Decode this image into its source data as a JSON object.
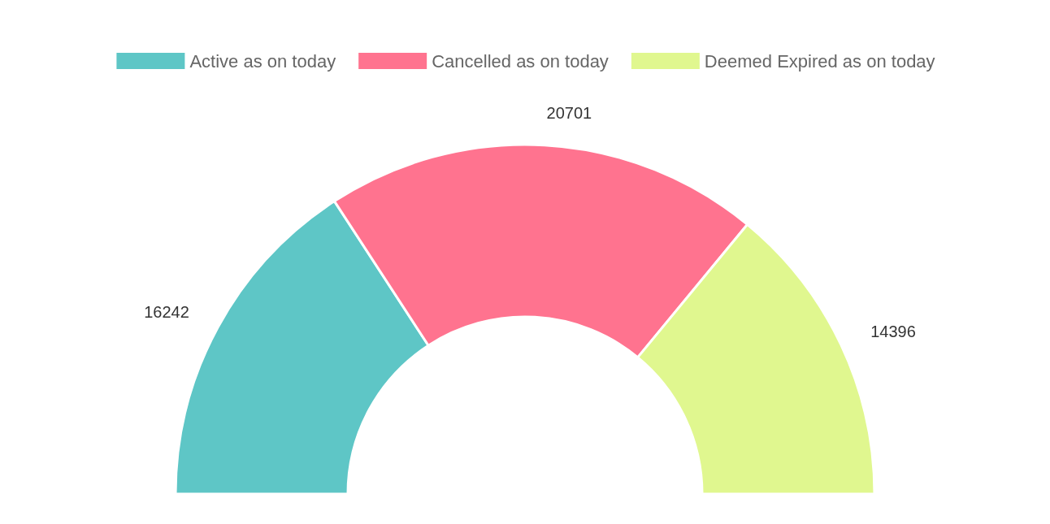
{
  "chart_data": {
    "type": "donut",
    "categories": [
      "Active as on today",
      "Cancelled as on today",
      "Deemed Expired as on today"
    ],
    "values": [
      16242,
      20701,
      14396
    ],
    "colors": [
      "#5ec6c6",
      "#ff738f",
      "#e0f78f"
    ],
    "data_labels": true,
    "legend": "top"
  }
}
